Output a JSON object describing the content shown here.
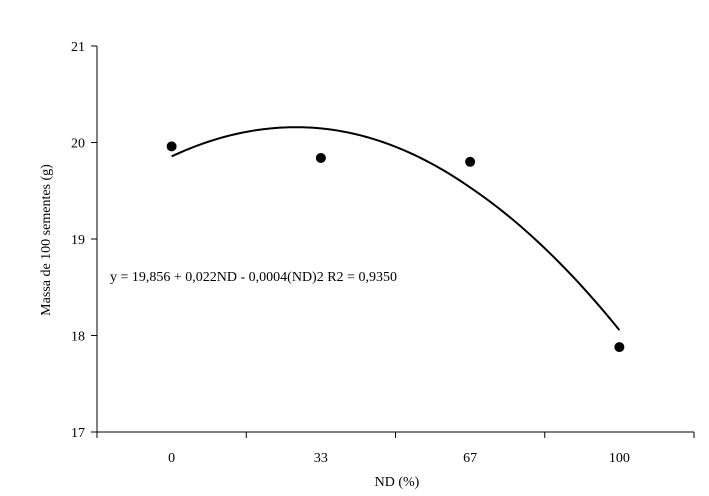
{
  "chart_data": {
    "type": "scatter",
    "xlabel": "ND (%)",
    "ylabel": "Massa de 100 sementes (g)",
    "x_categories": [
      "0",
      "33",
      "67",
      "100"
    ],
    "ylim": [
      17,
      21
    ],
    "yticks": [
      "17",
      "18",
      "19",
      "20",
      "21"
    ],
    "grid": false,
    "series": [
      {
        "type": "scatter",
        "points": [
          {
            "x": 0,
            "y": 19.96
          },
          {
            "x": 33,
            "y": 19.84
          },
          {
            "x": 67,
            "y": 19.8
          },
          {
            "x": 100,
            "y": 17.88
          }
        ]
      },
      {
        "type": "line",
        "fit": "quadratic",
        "coefficients": [
          19.856,
          0.022,
          -0.0004
        ],
        "x_range": [
          0,
          100
        ]
      }
    ],
    "annotation": "y = 19,856 + 0,022ND - 0,0004(ND)2  R2 = 0,9350"
  }
}
